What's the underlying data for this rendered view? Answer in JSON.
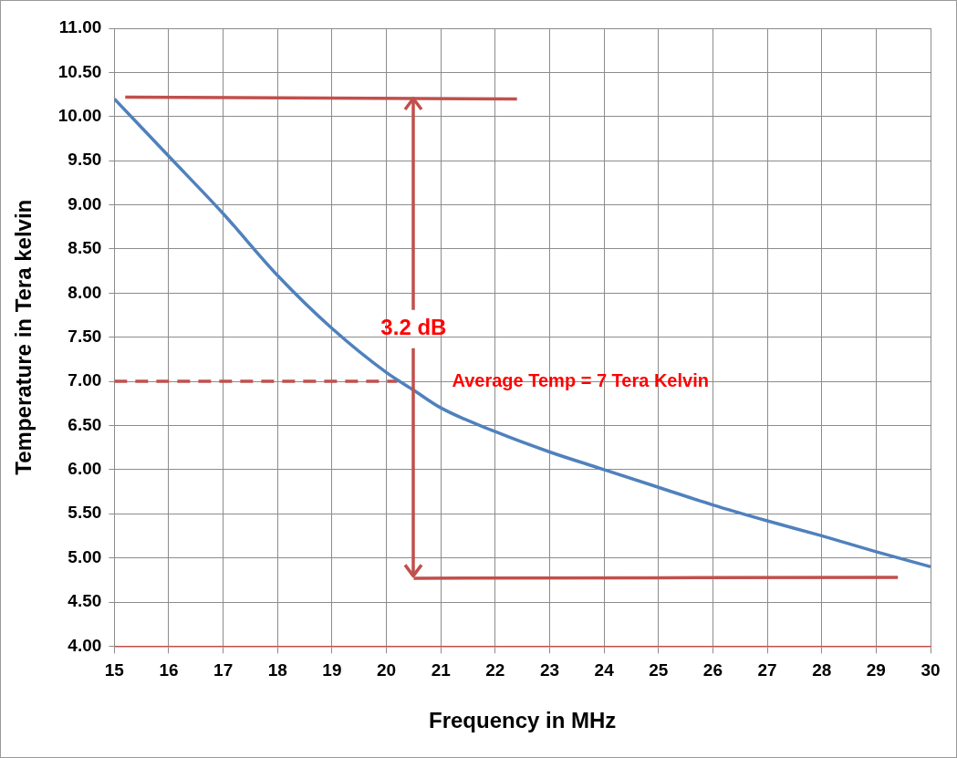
{
  "chart_data": {
    "type": "line",
    "xlabel": "Frequency in MHz",
    "ylabel": "Temperature in Tera kelvin",
    "xlim": [
      15,
      30
    ],
    "xticks": [
      15,
      16,
      17,
      18,
      19,
      20,
      21,
      22,
      23,
      24,
      25,
      26,
      27,
      28,
      29,
      30
    ],
    "ylim": [
      4,
      11
    ],
    "yticks": [
      {
        "value": 4,
        "label": "4.00"
      },
      {
        "value": 4.5,
        "label": "4.50"
      },
      {
        "value": 5,
        "label": "5.00"
      },
      {
        "value": 5.5,
        "label": "5.50"
      },
      {
        "value": 6,
        "label": "6.00"
      },
      {
        "value": 6.5,
        "label": "6.50"
      },
      {
        "value": 7,
        "label": "7.00"
      },
      {
        "value": 7.5,
        "label": "7.50"
      },
      {
        "value": 8,
        "label": "8.00"
      },
      {
        "value": 8.5,
        "label": "8.50"
      },
      {
        "value": 9,
        "label": "9.00"
      },
      {
        "value": 9.5,
        "label": "9.50"
      },
      {
        "value": 10,
        "label": "10.00"
      },
      {
        "value": 10.5,
        "label": "10.50"
      },
      {
        "value": 11,
        "label": "11.00"
      }
    ],
    "grid": true,
    "legend": false,
    "marker": "none",
    "series": [
      {
        "color": "#4f81bd",
        "x": [
          15,
          16,
          17,
          18,
          19,
          20,
          20.5,
          21,
          22,
          23,
          24,
          25,
          26,
          27,
          28,
          29,
          30
        ],
        "values": [
          10.2,
          9.55,
          8.9,
          8.2,
          7.6,
          7.1,
          6.9,
          6.7,
          6.43,
          6.2,
          6.0,
          5.8,
          5.6,
          5.42,
          5.25,
          5.07,
          4.9
        ]
      },
      {
        "color": "#c0504d",
        "x": [
          15.2,
          22.4
        ],
        "values": [
          10.22,
          10.2
        ]
      },
      {
        "color": "#c0504d",
        "x": [
          20.5,
          29.4
        ],
        "values": [
          4.77,
          4.78
        ]
      },
      {
        "color": "#c0504d",
        "line_style": "dashed",
        "x": [
          15,
          20.2
        ],
        "values": [
          7,
          7
        ]
      }
    ],
    "annotations": [
      {
        "text": "3.2 dB",
        "x": 20.5,
        "y": 4.77
      },
      "Average Temp = 7 Tera Kelvin"
    ]
  }
}
